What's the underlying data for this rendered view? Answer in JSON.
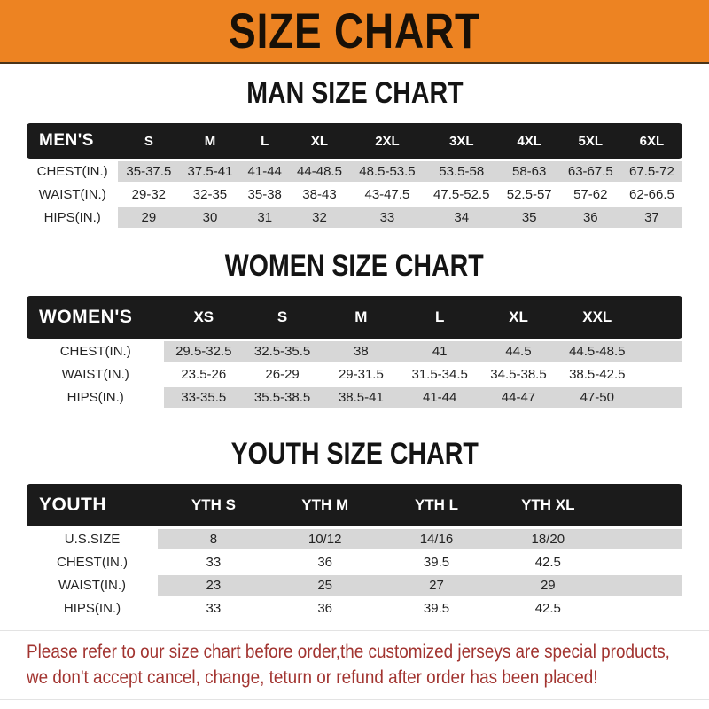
{
  "banner": {
    "title": "SIZE CHART"
  },
  "colors": {
    "banner_bg": "#ED8322",
    "header_bar_bg": "#1B1B1B",
    "stripe_row_bg": "#D7D7D7",
    "footer_text": "#A23430"
  },
  "sections": [
    {
      "heading": "MAN SIZE CHART",
      "table": {
        "label": "MEN'S",
        "columns": [
          "S",
          "M",
          "L",
          "XL",
          "2XL",
          "3XL",
          "4XL",
          "5XL",
          "6XL"
        ],
        "rows": [
          {
            "label": "CHEST(IN.)",
            "values": [
              "35-37.5",
              "37.5-41",
              "41-44",
              "44-48.5",
              "48.5-53.5",
              "53.5-58",
              "58-63",
              "63-67.5",
              "67.5-72"
            ]
          },
          {
            "label": "WAIST(IN.)",
            "values": [
              "29-32",
              "32-35",
              "35-38",
              "38-43",
              "43-47.5",
              "47.5-52.5",
              "52.5-57",
              "57-62",
              "62-66.5"
            ]
          },
          {
            "label": "HIPS(IN.)",
            "values": [
              "29",
              "30",
              "31",
              "32",
              "33",
              "34",
              "35",
              "36",
              "37"
            ]
          }
        ]
      }
    },
    {
      "heading": "WOMEN SIZE CHART",
      "table": {
        "label": "WOMEN'S",
        "columns": [
          "XS",
          "S",
          "M",
          "L",
          "XL",
          "XXL"
        ],
        "rows": [
          {
            "label": "CHEST(IN.)",
            "values": [
              "29.5-32.5",
              "32.5-35.5",
              "38",
              "41",
              "44.5",
              "44.5-48.5"
            ]
          },
          {
            "label": "WAIST(IN.)",
            "values": [
              "23.5-26",
              "26-29",
              "29-31.5",
              "31.5-34.5",
              "34.5-38.5",
              "38.5-42.5"
            ]
          },
          {
            "label": "HIPS(IN.)",
            "values": [
              "33-35.5",
              "35.5-38.5",
              "38.5-41",
              "41-44",
              "44-47",
              "47-50"
            ]
          }
        ]
      }
    },
    {
      "heading": "YOUTH SIZE CHART",
      "table": {
        "label": "YOUTH",
        "columns": [
          "YTH S",
          "YTH M",
          "YTH L",
          "YTH XL"
        ],
        "rows": [
          {
            "label": "U.S.SIZE",
            "values": [
              "8",
              "10/12",
              "14/16",
              "18/20"
            ]
          },
          {
            "label": "CHEST(IN.)",
            "values": [
              "33",
              "36",
              "39.5",
              "42.5"
            ]
          },
          {
            "label": "WAIST(IN.)",
            "values": [
              "23",
              "25",
              "27",
              "29"
            ]
          },
          {
            "label": "HIPS(IN.)",
            "values": [
              "33",
              "36",
              "39.5",
              "42.5"
            ]
          }
        ]
      }
    }
  ],
  "footer": {
    "line1": "Please refer to our size chart before order,the customized jerseys are special products,",
    "line2": "we don't accept cancel, change, teturn or refund after order has been placed!"
  }
}
